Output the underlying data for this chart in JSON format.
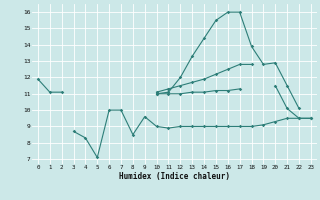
{
  "xlabel": "Humidex (Indice chaleur)",
  "bg_color": "#cce8e8",
  "line_color": "#2d7e78",
  "grid_color": "#ffffff",
  "x": [
    0,
    1,
    2,
    3,
    4,
    5,
    6,
    7,
    8,
    9,
    10,
    11,
    12,
    13,
    14,
    15,
    16,
    17,
    18,
    19,
    20,
    21,
    22,
    23
  ],
  "line1": [
    11.9,
    11.1,
    11.1,
    null,
    null,
    null,
    null,
    null,
    null,
    null,
    11.0,
    11.1,
    12.0,
    13.3,
    14.4,
    15.5,
    16.0,
    16.0,
    13.9,
    12.8,
    12.9,
    11.5,
    10.1,
    null
  ],
  "line2": [
    null,
    null,
    null,
    null,
    null,
    null,
    null,
    null,
    null,
    null,
    11.1,
    11.3,
    11.5,
    11.7,
    11.9,
    12.2,
    12.5,
    12.8,
    12.8,
    null,
    null,
    null,
    null,
    null
  ],
  "line3": [
    null,
    null,
    null,
    null,
    null,
    null,
    null,
    null,
    null,
    null,
    11.0,
    11.0,
    11.0,
    11.1,
    11.1,
    11.2,
    11.2,
    11.3,
    null,
    null,
    11.5,
    10.1,
    9.5,
    9.5
  ],
  "line4": [
    null,
    null,
    null,
    8.7,
    8.3,
    7.1,
    10.0,
    10.0,
    8.5,
    9.6,
    9.0,
    8.9,
    9.0,
    9.0,
    9.0,
    9.0,
    9.0,
    9.0,
    9.0,
    9.1,
    9.3,
    9.5,
    9.5,
    9.5
  ],
  "ylim": [
    6.7,
    16.5
  ],
  "yticks": [
    7,
    8,
    9,
    10,
    11,
    12,
    13,
    14,
    15,
    16
  ],
  "xlim": [
    -0.5,
    23.5
  ],
  "xticks": [
    0,
    1,
    2,
    3,
    4,
    5,
    6,
    7,
    8,
    9,
    10,
    11,
    12,
    13,
    14,
    15,
    16,
    17,
    18,
    19,
    20,
    21,
    22,
    23
  ]
}
